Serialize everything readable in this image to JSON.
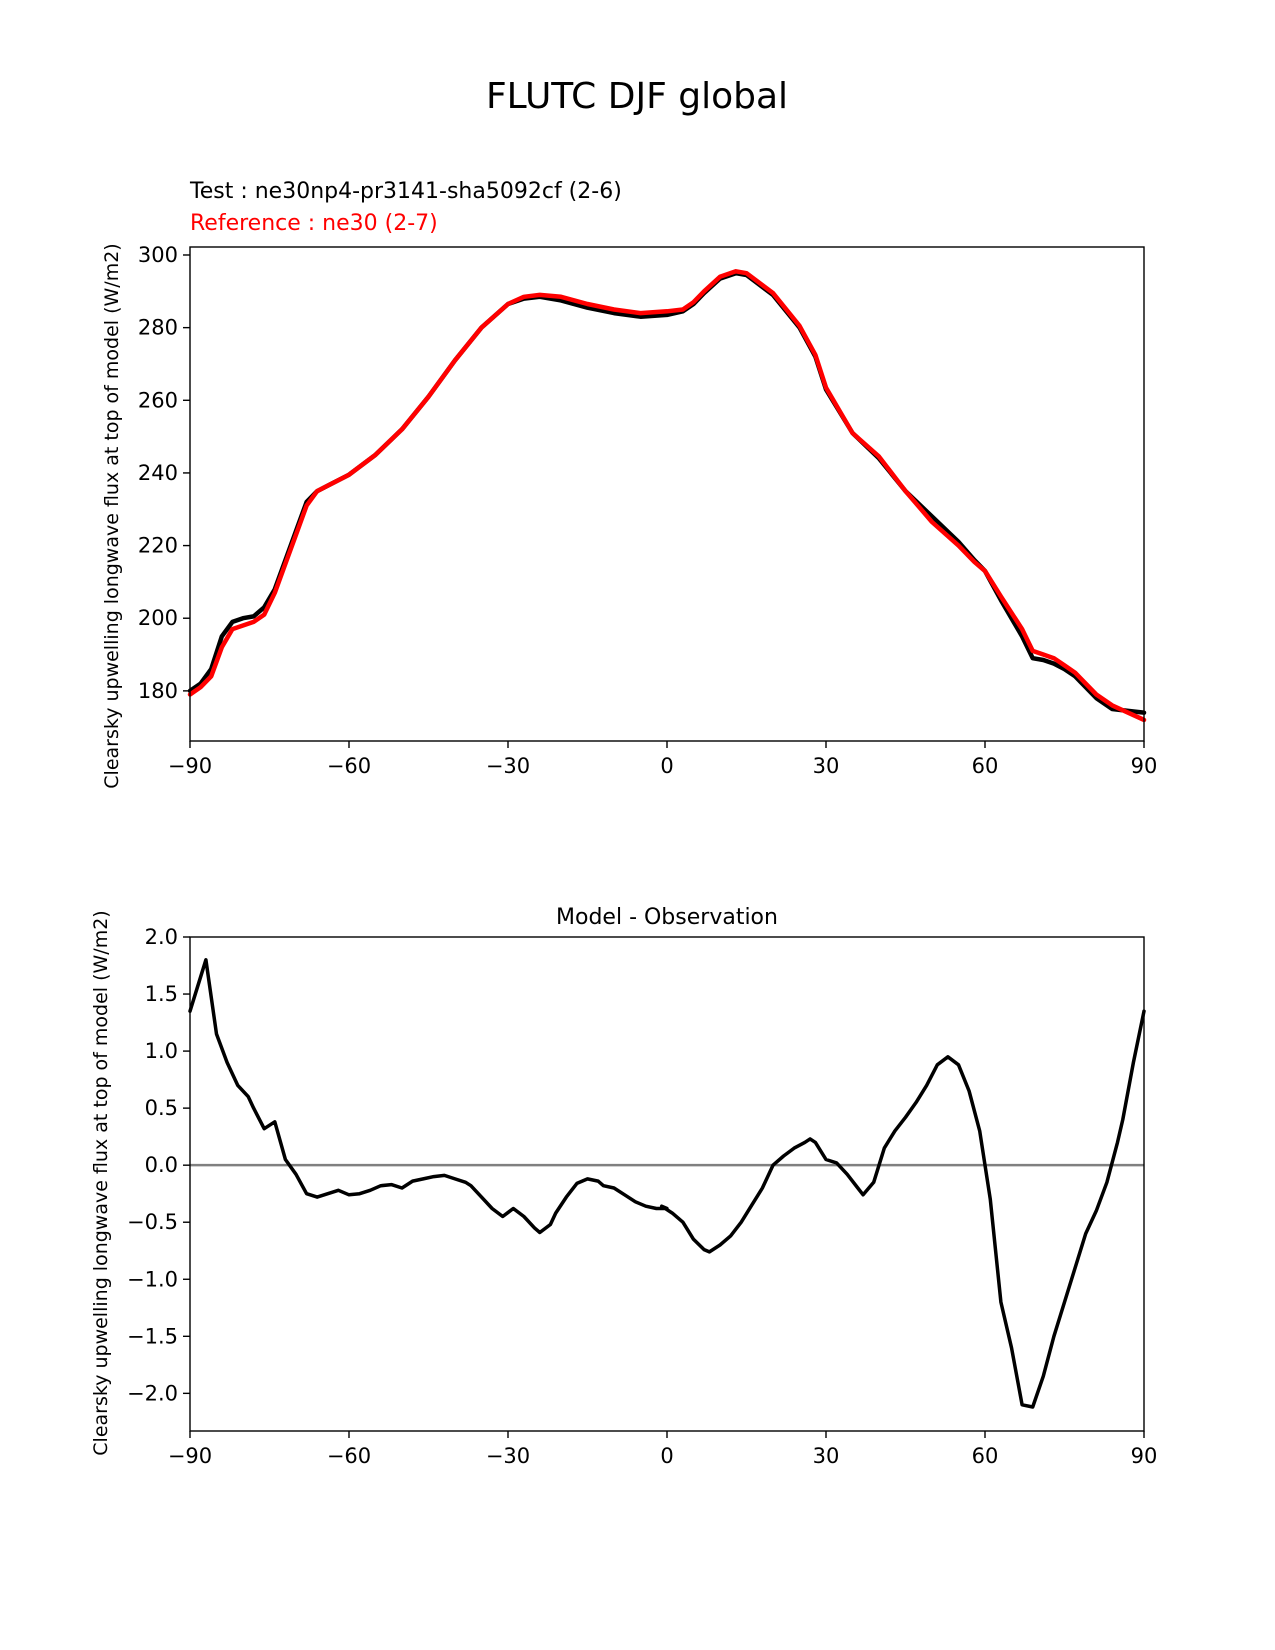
{
  "figure_title": "FLUTC DJF global",
  "colors": {
    "test": "#000000",
    "reference": "#ff0000",
    "zero_line": "#808080"
  },
  "chart_data": [
    {
      "type": "line",
      "title_test": "Test : ne30np4-pr3141-sha5092cf (2-6)",
      "title_reference": "Reference : ne30 (2-7)",
      "xlabel": "",
      "ylabel": "Clearsky upwelling longwave flux at top of model (W/m2)",
      "xlim": [
        -90,
        90
      ],
      "ylim": [
        166.2,
        302.2
      ],
      "xticks": [
        -90,
        -60,
        -30,
        0,
        30,
        60,
        90
      ],
      "xtick_labels": [
        "−90",
        "−60",
        "−30",
        "0",
        "30",
        "60",
        "90"
      ],
      "yticks": [
        180,
        200,
        220,
        240,
        260,
        280,
        300
      ],
      "ytick_labels": [
        "180",
        "200",
        "220",
        "240",
        "260",
        "280",
        "300"
      ],
      "series": [
        {
          "name": "Test",
          "color": "#000000",
          "x": [
            -90,
            -88,
            -86,
            -84,
            -82,
            -80,
            -78,
            -76,
            -74,
            -72,
            -70,
            -68,
            -66,
            -64,
            -60,
            -55,
            -50,
            -45,
            -40,
            -35,
            -30,
            -27,
            -24,
            -20,
            -15,
            -10,
            -5,
            0,
            3,
            5,
            7,
            10,
            13,
            15,
            20,
            25,
            28,
            30,
            35,
            40,
            45,
            50,
            55,
            58,
            60,
            63,
            67,
            69,
            71,
            73,
            75,
            77,
            79,
            81,
            84,
            87,
            90
          ],
          "values": [
            180,
            182,
            186,
            195,
            199,
            200,
            200.5,
            203,
            208,
            216,
            224,
            232,
            235,
            236.5,
            239.5,
            245,
            252,
            261,
            271,
            280,
            286.5,
            288,
            288.5,
            287.5,
            285.5,
            284,
            283,
            283.5,
            284.5,
            286.5,
            289.5,
            293.5,
            295,
            294.5,
            289,
            280,
            272,
            263,
            251,
            244,
            235,
            228,
            221,
            216,
            213,
            205,
            195,
            189,
            188.5,
            187.5,
            186,
            184,
            181,
            178,
            175,
            174.5,
            174
          ]
        },
        {
          "name": "Reference",
          "color": "#ff0000",
          "x": [
            -90,
            -88,
            -86,
            -84,
            -82,
            -80,
            -78,
            -76,
            -74,
            -72,
            -70,
            -68,
            -66,
            -64,
            -60,
            -55,
            -50,
            -45,
            -40,
            -35,
            -30,
            -27,
            -24,
            -20,
            -15,
            -10,
            -5,
            0,
            3,
            5,
            7,
            10,
            13,
            15,
            20,
            25,
            28,
            30,
            35,
            40,
            45,
            50,
            55,
            58,
            60,
            63,
            67,
            69,
            71,
            73,
            75,
            77,
            79,
            81,
            84,
            87,
            90
          ],
          "values": [
            179,
            181,
            184,
            192,
            197,
            198,
            199,
            201,
            207,
            215,
            223,
            231,
            235,
            236.5,
            239.5,
            245,
            252,
            261,
            271,
            280,
            286.5,
            288.5,
            289,
            288.5,
            286.5,
            285,
            284,
            284.5,
            285,
            287,
            290,
            294,
            295.5,
            295,
            289.5,
            280.5,
            272.5,
            263.5,
            251,
            244.5,
            235,
            226.5,
            220,
            215.5,
            213,
            206,
            197,
            191,
            190,
            189,
            187,
            185,
            182,
            179,
            176,
            174,
            172
          ]
        }
      ]
    },
    {
      "type": "line",
      "title": "Model - Observation",
      "xlabel": "",
      "ylabel": "Clearsky upwelling longwave flux at top of model (W/m2)",
      "xlim": [
        -90,
        90
      ],
      "ylim": [
        -2.33,
        2.0
      ],
      "xticks": [
        -90,
        -60,
        -30,
        0,
        30,
        60,
        90
      ],
      "xtick_labels": [
        "−90",
        "−60",
        "−30",
        "0",
        "30",
        "60",
        "90"
      ],
      "yticks": [
        2.0,
        1.5,
        1.0,
        0.5,
        0.0,
        -0.5,
        -1.0,
        -1.5,
        -2.0
      ],
      "ytick_labels": [
        "2.0",
        "1.5",
        "1.0",
        "0.5",
        "0.0",
        "−0.5",
        "−1.0",
        "−1.5",
        "−2.0"
      ],
      "hline": 0,
      "series": [
        {
          "name": "Test - Observation",
          "color": "#000000",
          "x": [
            -90,
            -87,
            -85,
            -83,
            -81,
            -79,
            -78,
            -76,
            -74,
            -72,
            -70,
            -68,
            -66,
            -64,
            -62,
            -60,
            -58,
            -56,
            -54,
            -52,
            -50,
            -48,
            -46,
            -44,
            -42,
            -40,
            -38,
            -37,
            -35,
            -33,
            -31,
            -29,
            -27,
            -25,
            -24,
            -22,
            -21,
            -19,
            -17,
            -15,
            -13,
            -12,
            -10,
            -8,
            -6,
            -4,
            -2,
            0,
            -1,
            1,
            3,
            5,
            7,
            8,
            10,
            12,
            14,
            16,
            18,
            20,
            22,
            24,
            26,
            27,
            28,
            30,
            32,
            34,
            36,
            37,
            39,
            41,
            43,
            45,
            47,
            49,
            51,
            53,
            55,
            57,
            59,
            61,
            63,
            65,
            67,
            69,
            71,
            73,
            75,
            77,
            79,
            81,
            83,
            85,
            86,
            88,
            90
          ],
          "values": [
            1.35,
            1.8,
            1.15,
            0.9,
            0.7,
            0.6,
            0.5,
            0.32,
            0.38,
            0.05,
            -0.08,
            -0.25,
            -0.28,
            -0.25,
            -0.22,
            -0.26,
            -0.25,
            -0.22,
            -0.18,
            -0.17,
            -0.2,
            -0.14,
            -0.12,
            -0.1,
            -0.09,
            -0.12,
            -0.15,
            -0.18,
            -0.28,
            -0.38,
            -0.45,
            -0.38,
            -0.45,
            -0.55,
            -0.59,
            -0.52,
            -0.42,
            -0.28,
            -0.16,
            -0.12,
            -0.14,
            -0.18,
            -0.2,
            -0.26,
            -0.32,
            -0.36,
            -0.38,
            -0.38,
            -0.36,
            -0.42,
            -0.5,
            -0.65,
            -0.74,
            -0.76,
            -0.7,
            -0.62,
            -0.5,
            -0.35,
            -0.2,
            0.0,
            0.08,
            0.15,
            0.2,
            0.23,
            0.2,
            0.05,
            0.02,
            -0.08,
            -0.2,
            -0.26,
            -0.15,
            0.15,
            0.3,
            0.42,
            0.55,
            0.7,
            0.88,
            0.95,
            0.88,
            0.65,
            0.3,
            -0.3,
            -1.2,
            -1.6,
            -2.1,
            -2.12,
            -1.85,
            -1.5,
            -1.2,
            -0.9,
            -0.6,
            -0.4,
            -0.15,
            0.2,
            0.4,
            0.9,
            1.35
          ]
        }
      ]
    }
  ]
}
